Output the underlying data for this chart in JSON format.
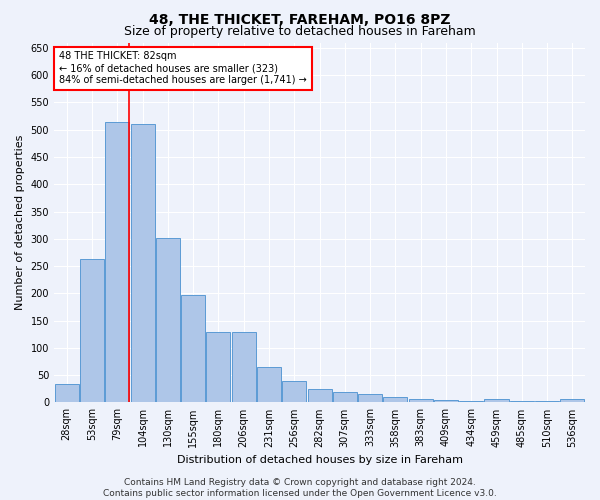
{
  "title": "48, THE THICKET, FAREHAM, PO16 8PZ",
  "subtitle": "Size of property relative to detached houses in Fareham",
  "xlabel": "Distribution of detached houses by size in Fareham",
  "ylabel": "Number of detached properties",
  "categories": [
    "28sqm",
    "53sqm",
    "79sqm",
    "104sqm",
    "130sqm",
    "155sqm",
    "180sqm",
    "206sqm",
    "231sqm",
    "256sqm",
    "282sqm",
    "307sqm",
    "333sqm",
    "358sqm",
    "383sqm",
    "409sqm",
    "434sqm",
    "459sqm",
    "485sqm",
    "510sqm",
    "536sqm"
  ],
  "values": [
    33,
    263,
    515,
    510,
    302,
    197,
    130,
    130,
    65,
    40,
    24,
    20,
    16,
    10,
    7,
    5,
    2,
    6,
    2,
    2,
    6
  ],
  "bar_color": "#aec6e8",
  "bar_edge_color": "#5b9bd5",
  "annotation_box_text": "48 THE THICKET: 82sqm\n← 16% of detached houses are smaller (323)\n84% of semi-detached houses are larger (1,741) →",
  "annotation_box_color": "white",
  "annotation_box_edge_color": "red",
  "vline_color": "red",
  "vline_x_index": 2,
  "footnote": "Contains HM Land Registry data © Crown copyright and database right 2024.\nContains public sector information licensed under the Open Government Licence v3.0.",
  "bg_color": "#eef2fb",
  "grid_color": "white",
  "title_fontsize": 10,
  "subtitle_fontsize": 9,
  "axis_label_fontsize": 8,
  "tick_fontsize": 7,
  "footnote_fontsize": 6.5,
  "annot_fontsize": 7,
  "ylim": [
    0,
    660
  ],
  "yticks": [
    0,
    50,
    100,
    150,
    200,
    250,
    300,
    350,
    400,
    450,
    500,
    550,
    600,
    650
  ]
}
